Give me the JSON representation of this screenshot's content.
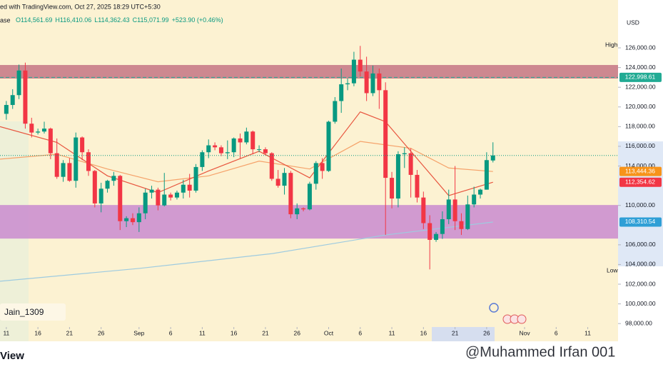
{
  "chart_data": {
    "type": "candlestick",
    "header": {
      "source": "ed with TradingView.com, Oct 27, 2025 18:29 UTC+5:30",
      "symbol": "ase",
      "ohlc": [
        "O114,561.69",
        "H116,410.06",
        "L114,362.43",
        "C115,071.99"
      ],
      "change": "+523.90 (+0.46%)"
    },
    "currency": "USD",
    "high_label": "High",
    "low_label": "Low",
    "author": "Jain_1309",
    "brand": "View",
    "watermark": "@Muhammed Irfan 001",
    "up_color": "#089981",
    "down_color": "#f23645",
    "x": [
      "2025-08-11",
      "2025-08-12",
      "2025-08-13",
      "2025-08-14",
      "2025-08-15",
      "2025-08-16",
      "2025-08-17",
      "2025-08-18",
      "2025-08-19",
      "2025-08-20",
      "2025-08-21",
      "2025-08-22",
      "2025-08-23",
      "2025-08-24",
      "2025-08-25",
      "2025-08-26",
      "2025-08-27",
      "2025-08-28",
      "2025-08-29",
      "2025-08-30",
      "2025-08-31",
      "2025-09-01",
      "2025-09-02",
      "2025-09-03",
      "2025-09-04",
      "2025-09-05",
      "2025-09-06",
      "2025-09-07",
      "2025-09-08",
      "2025-09-09",
      "2025-09-10",
      "2025-09-11",
      "2025-09-12",
      "2025-09-13",
      "2025-09-14",
      "2025-09-15",
      "2025-09-16",
      "2025-09-17",
      "2025-09-18",
      "2025-09-19",
      "2025-09-20",
      "2025-09-21",
      "2025-09-22",
      "2025-09-23",
      "2025-09-24",
      "2025-09-25",
      "2025-09-26",
      "2025-09-27",
      "2025-09-28",
      "2025-09-29",
      "2025-09-30",
      "2025-10-01",
      "2025-10-02",
      "2025-10-03",
      "2025-10-04",
      "2025-10-05",
      "2025-10-06",
      "2025-10-07",
      "2025-10-08",
      "2025-10-09",
      "2025-10-10",
      "2025-10-11",
      "2025-10-12",
      "2025-10-13",
      "2025-10-14",
      "2025-10-15",
      "2025-10-16",
      "2025-10-17",
      "2025-10-18",
      "2025-10-19",
      "2025-10-20",
      "2025-10-21",
      "2025-10-22",
      "2025-10-23",
      "2025-10-24",
      "2025-10-25",
      "2025-10-26",
      "2025-10-27"
    ],
    "open": [
      119300,
      120200,
      121200,
      123700,
      118300,
      117400,
      117500,
      117800,
      115300,
      112900,
      114300,
      112500,
      116900,
      115400,
      113500,
      110200,
      111700,
      112500,
      113000,
      108400,
      108700,
      108300,
      109200,
      111300,
      111600,
      110000,
      111100,
      110800,
      111300,
      112100,
      111500,
      113900,
      115400,
      116100,
      115900,
      115300,
      115400,
      116800,
      116400,
      117500,
      115700,
      115700,
      115300,
      112700,
      112000,
      113300,
      109100,
      109700,
      109600,
      112200,
      114300,
      113500,
      118500,
      120600,
      122300,
      122400,
      124800,
      123600,
      121400,
      123400,
      121700,
      112800,
      110700,
      115200,
      115300,
      113100,
      110800,
      108200,
      106500,
      107100,
      108600,
      110600,
      108400,
      107600,
      110100,
      111100,
      111600,
      114561.69
    ],
    "high": [
      120600,
      121800,
      124300,
      124500,
      118900,
      117800,
      118500,
      117900,
      116800,
      114600,
      114800,
      117400,
      117000,
      115700,
      113600,
      112300,
      112600,
      113400,
      113100,
      108900,
      109200,
      109800,
      111700,
      112000,
      111800,
      113300,
      111300,
      111500,
      112600,
      113200,
      114200,
      115600,
      116700,
      116400,
      116100,
      116600,
      116900,
      117300,
      117900,
      117600,
      116100,
      115900,
      115400,
      113600,
      113800,
      113500,
      110200,
      109800,
      112400,
      114500,
      114800,
      118600,
      121000,
      123900,
      122900,
      125600,
      126200,
      125100,
      124200,
      123900,
      122500,
      113400,
      115500,
      115900,
      115800,
      113600,
      111400,
      109000,
      107300,
      109400,
      111600,
      114000,
      109200,
      111000,
      111900,
      111700,
      115400,
      116410.06
    ],
    "low": [
      118700,
      119800,
      120800,
      117800,
      116900,
      117200,
      117300,
      114700,
      112700,
      112400,
      112400,
      111800,
      114600,
      113000,
      109800,
      109300,
      111300,
      112000,
      107500,
      107800,
      108000,
      107300,
      108600,
      110700,
      109500,
      109900,
      110500,
      110600,
      110700,
      110800,
      111300,
      113500,
      114800,
      115600,
      115000,
      114700,
      114900,
      114800,
      116200,
      115200,
      115400,
      115100,
      112500,
      111800,
      111100,
      108700,
      108600,
      109400,
      109500,
      111600,
      112700,
      113400,
      118300,
      119400,
      121700,
      122100,
      123100,
      120600,
      121100,
      119800,
      107000,
      109700,
      109800,
      113800,
      110800,
      110300,
      107600,
      103500,
      106300,
      106600,
      108100,
      107500,
      107000,
      107500,
      109800,
      110700,
      111600,
      114362.43
    ],
    "close": [
      120200,
      121200,
      123700,
      118300,
      117400,
      117500,
      117800,
      115300,
      112900,
      114300,
      112500,
      116900,
      115400,
      113500,
      110200,
      111700,
      112500,
      113000,
      108400,
      108700,
      108300,
      109200,
      111300,
      111600,
      110000,
      111100,
      110800,
      111300,
      112100,
      111500,
      113900,
      115400,
      116100,
      115900,
      115300,
      115400,
      116800,
      116400,
      117500,
      115700,
      115700,
      115300,
      112700,
      112000,
      113300,
      109100,
      109700,
      109600,
      112200,
      114300,
      113500,
      118500,
      120600,
      122300,
      122400,
      124800,
      123600,
      121400,
      123400,
      121700,
      112800,
      110700,
      115200,
      115300,
      113100,
      110800,
      108200,
      106500,
      107100,
      108600,
      110600,
      108400,
      107600,
      110100,
      111100,
      111600,
      114600,
      115071.99
    ],
    "series": [
      {
        "color": "#f5a26a",
        "x": [
          "2025-08-10",
          "2025-08-19",
          "2025-08-27",
          "2025-09-04",
          "2025-09-12",
          "2025-09-20",
          "2025-09-28",
          "2025-10-06",
          "2025-10-14",
          "2025-10-20",
          "2025-10-27"
        ],
        "values": [
          114700,
          115200,
          113700,
          112400,
          113000,
          114500,
          113700,
          116500,
          115800,
          113800,
          113444.36
        ],
        "last_label": "113,444.36",
        "tag_color": "#f7931a"
      },
      {
        "color": "#e8553e",
        "x": [
          "2025-08-10",
          "2025-08-19",
          "2025-08-27",
          "2025-09-04",
          "2025-09-12",
          "2025-09-20",
          "2025-09-28",
          "2025-10-06",
          "2025-10-10",
          "2025-10-14",
          "2025-10-20",
          "2025-10-27"
        ],
        "values": [
          118000,
          116400,
          113000,
          111300,
          113500,
          115500,
          112800,
          119500,
          118500,
          115500,
          111000,
          112354.62
        ],
        "last_label": "112,354.62",
        "tag_color": "#f23645"
      },
      {
        "color": "#9ecbe0",
        "x": [
          "2025-08-10",
          "2025-09-01",
          "2025-09-22",
          "2025-10-10",
          "2025-10-27"
        ],
        "values": [
          102300,
          103600,
          105100,
          107000,
          108310.54
        ],
        "last_label": "108,310.54",
        "tag_color": "#2f9fd6"
      }
    ],
    "zones": [
      {
        "from": 122880,
        "to": 124260,
        "color": "#c47585"
      },
      {
        "from": 106630,
        "to": 110040,
        "color": "#c98bd0"
      }
    ],
    "hlines": [
      {
        "value": 122998.61,
        "label": "122,998.61",
        "color": "#22ab94"
      }
    ],
    "ylim": [
      96200,
      130860
    ],
    "yticks": [
      {
        "value": 98000,
        "label": "98,000.00"
      },
      {
        "value": 100000,
        "label": "100,000.00"
      },
      {
        "value": 102000,
        "label": "102,000.00"
      },
      {
        "value": 104000,
        "label": "104,000.00"
      },
      {
        "value": 106000,
        "label": "106,000.00"
      },
      {
        "value": 110000,
        "label": "110,000.00"
      },
      {
        "value": 114000,
        "label": "114,000.00"
      },
      {
        "value": 116000,
        "label": "116,000.00"
      },
      {
        "value": 118000,
        "label": "118,000.00"
      },
      {
        "value": 120000,
        "label": "120,000.00"
      },
      {
        "value": 122000,
        "label": "122,000.00"
      },
      {
        "value": 124000,
        "label": "124,000.00"
      },
      {
        "value": 126000,
        "label": "126,000.00"
      }
    ],
    "xlim": [
      "2025-08-10",
      "2025-11-15"
    ],
    "xticks": [
      {
        "value": "2025-08-11",
        "label": "11"
      },
      {
        "value": "2025-08-16",
        "label": "16"
      },
      {
        "value": "2025-08-21",
        "label": "21"
      },
      {
        "value": "2025-08-26",
        "label": "26"
      },
      {
        "value": "2025-09-01",
        "label": "Sep"
      },
      {
        "value": "2025-09-06",
        "label": "6"
      },
      {
        "value": "2025-09-11",
        "label": "11"
      },
      {
        "value": "2025-09-16",
        "label": "16"
      },
      {
        "value": "2025-09-21",
        "label": "21"
      },
      {
        "value": "2025-09-26",
        "label": "26"
      },
      {
        "value": "2025-10-01",
        "label": "Oct"
      },
      {
        "value": "2025-10-06",
        "label": "6"
      },
      {
        "value": "2025-10-11",
        "label": "11"
      },
      {
        "value": "2025-10-16",
        "label": "16"
      },
      {
        "value": "2025-10-21",
        "label": "21"
      },
      {
        "value": "2025-10-26",
        "label": "26"
      },
      {
        "value": "2025-11-01",
        "label": "Nov"
      },
      {
        "value": "2025-11-06",
        "label": "6"
      },
      {
        "value": "2025-11-11",
        "label": "11"
      }
    ],
    "grid": false
  }
}
